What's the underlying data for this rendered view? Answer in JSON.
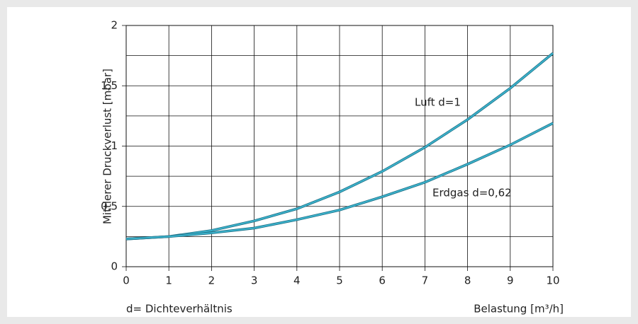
{
  "chart_data": {
    "type": "line",
    "ylabel": "Mittlerer Druckverlust [mbar]",
    "xlabel": "Belastung [m³/h]",
    "footnote": "d= Dichteverhältnis",
    "x": [
      0,
      1,
      2,
      3,
      4,
      5,
      6,
      7,
      8,
      9,
      10
    ],
    "series": [
      {
        "name": "Luft d=1",
        "color": "#3cb3cc",
        "values": [
          0.23,
          0.25,
          0.3,
          0.38,
          0.48,
          0.62,
          0.79,
          0.99,
          1.22,
          1.48,
          1.77
        ]
      },
      {
        "name": "Erdgas d=0,62",
        "color": "#3cb3cc",
        "values": [
          0.23,
          0.25,
          0.28,
          0.32,
          0.39,
          0.47,
          0.58,
          0.7,
          0.85,
          1.01,
          1.19
        ]
      }
    ],
    "xlim": [
      0,
      10
    ],
    "xticks": [
      0,
      1,
      2,
      3,
      4,
      5,
      6,
      7,
      8,
      9,
      10
    ],
    "ylim": [
      0,
      2
    ],
    "yticks": [
      0,
      {
        "value": 0.5,
        "label": "0,5"
      },
      1,
      {
        "value": 1.5,
        "label": "1,5"
      },
      2
    ],
    "yminor": [
      0.25,
      0.75,
      1.25,
      1.75
    ],
    "grid": true
  }
}
